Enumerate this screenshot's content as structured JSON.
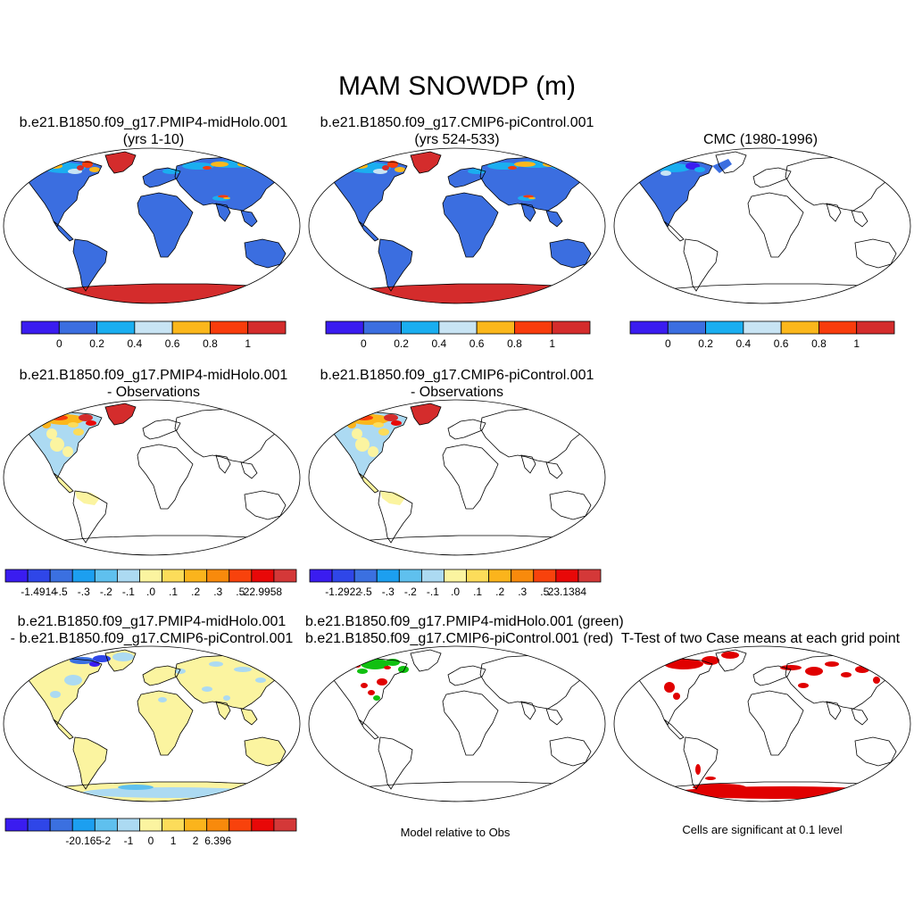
{
  "title": "MAM SNOWDP (m)",
  "panels": [
    {
      "id": "p1",
      "line1": "b.e21.B1850.f09_g17.PMIP4-midHolo.001",
      "line2": "(yrs 1-10)"
    },
    {
      "id": "p2",
      "line1": "b.e21.B1850.f09_g17.CMIP6-piControl.001",
      "line2": "(yrs 524-533)"
    },
    {
      "id": "p3",
      "line1": "",
      "line2": "CMC (1980-1996)"
    },
    {
      "id": "p4",
      "line1": "b.e21.B1850.f09_g17.PMIP4-midHolo.001",
      "line2": "- Observations"
    },
    {
      "id": "p5",
      "line1": "b.e21.B1850.f09_g17.CMIP6-piControl.001",
      "line2": "- Observations"
    },
    {
      "id": "p6",
      "line1": "b.e21.B1850.f09_g17.PMIP4-midHolo.001",
      "line2": "- b.e21.B1850.f09_g17.CMIP6-piControl.001"
    },
    {
      "id": "p7",
      "line1": "b.e21.B1850.f09_g17.PMIP4-midHolo.001 (green)",
      "line2": "b.e21.B1850.f09_g17.CMIP6-piControl.001 (red)"
    },
    {
      "id": "p8",
      "line1": "",
      "line2": "T-Test of two Case means at each grid point"
    }
  ],
  "colorbars": {
    "abs": {
      "colors": [
        "#3a1cf0",
        "#3b6ee0",
        "#1aaef0",
        "#c8e4f4",
        "#fbb71c",
        "#f83c0c",
        "#d42c2c"
      ],
      "labels": [
        "0",
        "0.2",
        "0.4",
        "0.6",
        "0.8",
        "1"
      ]
    },
    "diff_obs_1": {
      "colors": [
        "#3a1cf0",
        "#2f46e8",
        "#3b70e0",
        "#1c9ff0",
        "#5fc0ee",
        "#acdaf2",
        "#fbf4a0",
        "#fcdc5a",
        "#fbb41c",
        "#f88a0c",
        "#f8420c",
        "#e80808",
        "#d43838"
      ],
      "labels": [
        "-1.4914",
        "-.5",
        "-.3",
        "-.2",
        "-.1",
        ".0",
        ".1",
        ".2",
        ".3",
        ".5",
        "22.9958"
      ]
    },
    "diff_obs_2": {
      "colors": [
        "#3a1cf0",
        "#2f46e8",
        "#3b70e0",
        "#1c9ff0",
        "#5fc0ee",
        "#acdaf2",
        "#fbf4a0",
        "#fcdc5a",
        "#fbb41c",
        "#f88a0c",
        "#f8420c",
        "#e80808",
        "#d43838"
      ],
      "labels": [
        "-1.2922",
        "-.5",
        "-.3",
        "-.2",
        "-.1",
        ".0",
        ".1",
        ".2",
        ".3",
        ".5",
        "23.1384"
      ]
    },
    "diff_case": {
      "colors": [
        "#3a1cf0",
        "#2f46e8",
        "#3b70e0",
        "#1c9ff0",
        "#5fc0ee",
        "#acdaf2",
        "#fbf4a0",
        "#fcdc5a",
        "#fbb41c",
        "#f88a0c",
        "#f8420c",
        "#e80808",
        "#d43838"
      ],
      "labels": [
        "-20.165",
        "-2",
        "-1",
        "0",
        "1",
        "2",
        "6.396"
      ]
    }
  },
  "notes": {
    "model_rel": "Model relative to Obs",
    "signif": "Cells are significant at 0.1 level"
  },
  "colors": {
    "land_blue": "#3b6ee0",
    "snow_red": "#d42c2c",
    "pale_yellow": "#fbf4a0",
    "pale_blue": "#acdaf2",
    "green": "#10c010",
    "red": "#e00000"
  }
}
